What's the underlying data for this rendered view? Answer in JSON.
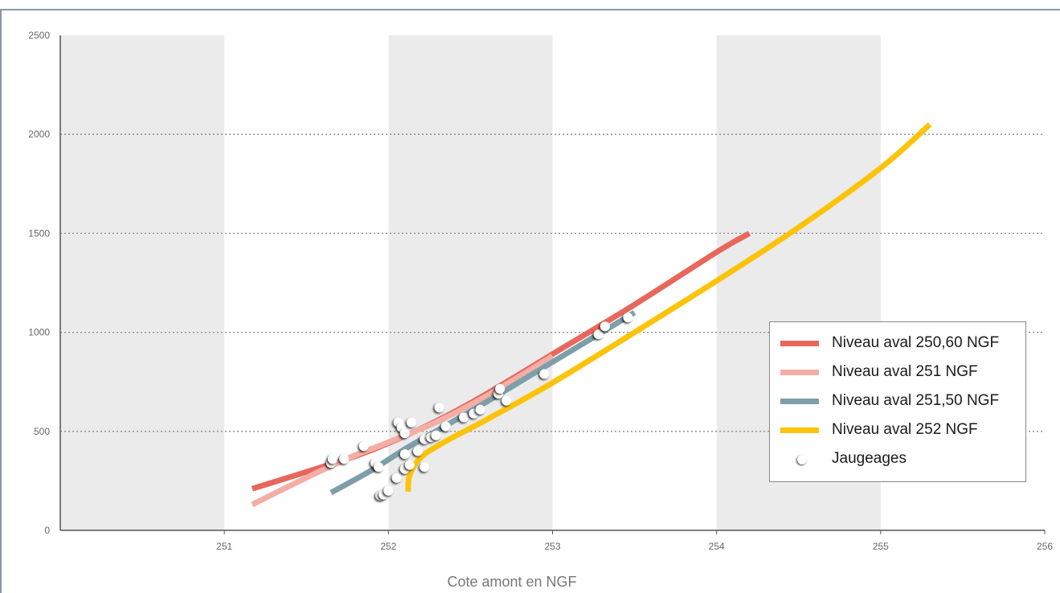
{
  "chart_data": {
    "type": "line",
    "title": "",
    "xlabel": "Cote amont en NGF",
    "ylabel": "",
    "xlim": [
      250,
      256
    ],
    "ylim": [
      0,
      2500
    ],
    "x_ticks": [
      "251",
      "252",
      "253",
      "254",
      "255",
      "256"
    ],
    "y_ticks": [
      "0",
      "500",
      "1000",
      "1500",
      "2000",
      "2500"
    ],
    "grid": "horizontal dotted",
    "legend_position": "right",
    "series": [
      {
        "name": "Niveau aval 250,60 NGF",
        "color": "#e8675d",
        "points": [
          [
            251.17,
            210
          ],
          [
            251.5,
            295
          ],
          [
            251.8,
            375
          ],
          [
            252.0,
            440
          ],
          [
            252.3,
            555
          ],
          [
            252.6,
            690
          ],
          [
            253.0,
            890
          ],
          [
            253.5,
            1140
          ],
          [
            254.0,
            1405
          ],
          [
            254.2,
            1500
          ]
        ]
      },
      {
        "name": "Niveau aval 251 NGF",
        "color": "#f4aea5",
        "points": [
          [
            251.17,
            130
          ],
          [
            251.4,
            225
          ],
          [
            251.6,
            305
          ],
          [
            251.8,
            380
          ],
          [
            252.0,
            445
          ],
          [
            252.3,
            550
          ],
          [
            252.6,
            680
          ],
          [
            253.0,
            880
          ]
        ]
      },
      {
        "name": "Niveau aval 251,50 NGF",
        "color": "#7e9faa",
        "points": [
          [
            251.65,
            190
          ],
          [
            251.9,
            305
          ],
          [
            252.1,
            410
          ],
          [
            252.3,
            505
          ],
          [
            252.6,
            650
          ],
          [
            253.0,
            850
          ],
          [
            253.4,
            1050
          ],
          [
            253.5,
            1100
          ]
        ]
      },
      {
        "name": "Niveau aval 252 NGF",
        "color": "#fcc30b",
        "points": [
          [
            252.12,
            195
          ],
          [
            252.13,
            280
          ],
          [
            252.2,
            370
          ],
          [
            252.35,
            450
          ],
          [
            252.6,
            560
          ],
          [
            253.0,
            745
          ],
          [
            253.5,
            1000
          ],
          [
            254.0,
            1260
          ],
          [
            254.5,
            1530
          ],
          [
            255.0,
            1830
          ],
          [
            255.3,
            2050
          ]
        ]
      }
    ],
    "scatter": {
      "name": "Jaugeages",
      "points": [
        [
          251.65,
          340
        ],
        [
          251.66,
          360
        ],
        [
          251.73,
          360
        ],
        [
          251.85,
          425
        ],
        [
          251.92,
          340
        ],
        [
          251.94,
          320
        ],
        [
          251.95,
          175
        ],
        [
          251.97,
          180
        ],
        [
          252.0,
          200
        ],
        [
          252.05,
          265
        ],
        [
          252.06,
          545
        ],
        [
          252.08,
          520
        ],
        [
          252.1,
          490
        ],
        [
          252.1,
          385
        ],
        [
          252.1,
          310
        ],
        [
          252.13,
          330
        ],
        [
          252.14,
          545
        ],
        [
          252.18,
          400
        ],
        [
          252.22,
          460
        ],
        [
          252.22,
          320
        ],
        [
          252.26,
          470
        ],
        [
          252.29,
          480
        ],
        [
          252.31,
          620
        ],
        [
          252.35,
          525
        ],
        [
          252.46,
          570
        ],
        [
          252.52,
          590
        ],
        [
          252.56,
          610
        ],
        [
          252.67,
          690
        ],
        [
          252.68,
          715
        ],
        [
          252.72,
          655
        ],
        [
          252.95,
          790
        ],
        [
          253.28,
          990
        ],
        [
          253.32,
          1030
        ],
        [
          253.46,
          1075
        ]
      ]
    }
  }
}
